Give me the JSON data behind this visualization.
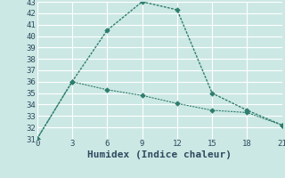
{
  "line1_x": [
    0,
    3,
    6,
    9,
    12,
    15,
    18,
    21
  ],
  "line1_y": [
    31,
    36,
    40.5,
    43,
    42.3,
    35,
    33.5,
    32.2
  ],
  "line2_x": [
    0,
    3,
    6,
    9,
    12,
    15,
    18,
    21
  ],
  "line2_y": [
    31,
    36,
    35.3,
    34.8,
    34.1,
    33.5,
    33.3,
    32.2
  ],
  "line_color": "#2e7d6e",
  "bg_color": "#cce8e4",
  "plot_bg": "#cce8e4",
  "grid_color": "#ffffff",
  "xlabel": "Humidex (Indice chaleur)",
  "xlim": [
    0,
    21
  ],
  "ylim": [
    31,
    43
  ],
  "xticks": [
    0,
    3,
    6,
    9,
    12,
    15,
    18,
    21
  ],
  "yticks": [
    31,
    32,
    33,
    34,
    35,
    36,
    37,
    38,
    39,
    40,
    41,
    42,
    43
  ],
  "font_color": "#2e4a5f",
  "tick_fontsize": 6.5,
  "xlabel_fontsize": 8.0,
  "linewidth1": 1.0,
  "linewidth2": 0.8
}
